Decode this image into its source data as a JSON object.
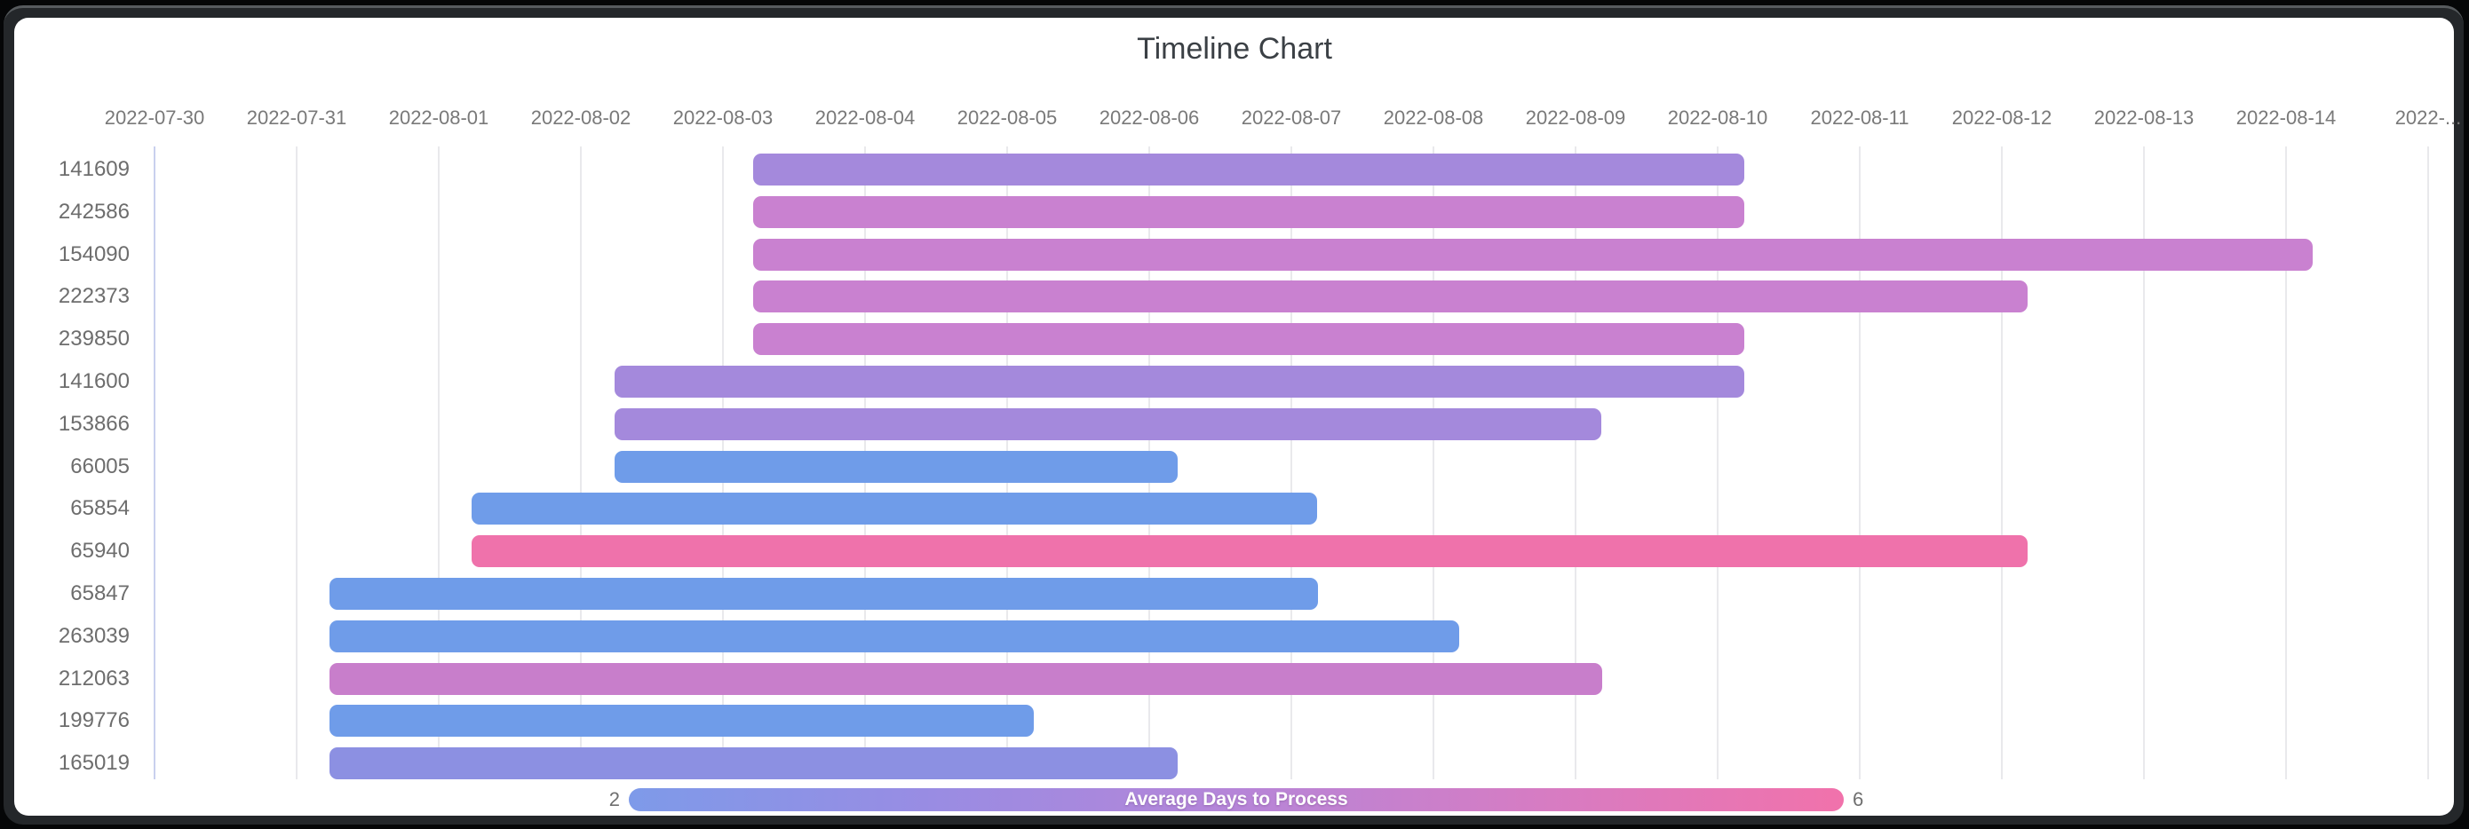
{
  "window": {
    "background_color": "#050607",
    "frame_color": "#24272a",
    "frame_highlight_color": "#575b5e",
    "card_color": "#ffffff"
  },
  "chart_data": {
    "type": "bar",
    "variant": "horizontal-timeline",
    "title": "Timeline Chart",
    "grid": true,
    "legend_position": "bottom",
    "x_axis": {
      "start_date": "2022-07-30",
      "tick_interval_days": 1,
      "labels": [
        "2022-07-30",
        "2022-07-31",
        "2022-08-01",
        "2022-08-02",
        "2022-08-03",
        "2022-08-04",
        "2022-08-05",
        "2022-08-06",
        "2022-08-07",
        "2022-08-08",
        "2022-08-09",
        "2022-08-10",
        "2022-08-11",
        "2022-08-12",
        "2022-08-13",
        "2022-08-14",
        "2022-..."
      ]
    },
    "y_axis": {
      "labels": [
        "141609",
        "242586",
        "154090",
        "222373",
        "239850",
        "141600",
        "153866",
        "66005",
        "65854",
        "65940",
        "65847",
        "263039",
        "212063",
        "199776",
        "165019"
      ]
    },
    "rows": [
      {
        "id": "141609",
        "start_day": 4.21,
        "end_day": 11.19,
        "start_date": "2022-08-03",
        "end_date": "2022-08-10",
        "duration_days": 7,
        "avg_days_to_process": 3.5,
        "color": "#a489dc"
      },
      {
        "id": "242586",
        "start_day": 4.21,
        "end_day": 11.19,
        "start_date": "2022-08-03",
        "end_date": "2022-08-10",
        "duration_days": 7,
        "avg_days_to_process": 4.7,
        "color": "#c981d0"
      },
      {
        "id": "154090",
        "start_day": 4.21,
        "end_day": 15.19,
        "start_date": "2022-08-03",
        "end_date": "2022-08-14",
        "duration_days": 11,
        "avg_days_to_process": 4.7,
        "color": "#c981d0"
      },
      {
        "id": "222373",
        "start_day": 4.21,
        "end_day": 13.18,
        "start_date": "2022-08-03",
        "end_date": "2022-08-12",
        "duration_days": 9,
        "avg_days_to_process": 4.7,
        "color": "#c981d0"
      },
      {
        "id": "239850",
        "start_day": 4.21,
        "end_day": 11.19,
        "start_date": "2022-08-03",
        "end_date": "2022-08-10",
        "duration_days": 7,
        "avg_days_to_process": 4.7,
        "color": "#c981d0"
      },
      {
        "id": "141600",
        "start_day": 3.24,
        "end_day": 11.19,
        "start_date": "2022-08-02",
        "end_date": "2022-08-10",
        "duration_days": 8,
        "avg_days_to_process": 3.5,
        "color": "#a489dc"
      },
      {
        "id": "153866",
        "start_day": 3.24,
        "end_day": 10.18,
        "start_date": "2022-08-02",
        "end_date": "2022-08-09",
        "duration_days": 7,
        "avg_days_to_process": 3.5,
        "color": "#a489dc"
      },
      {
        "id": "66005",
        "start_day": 3.24,
        "end_day": 7.2,
        "start_date": "2022-08-02",
        "end_date": "2022-08-06",
        "duration_days": 4,
        "avg_days_to_process": 2,
        "color": "#6f9ce9"
      },
      {
        "id": "65854",
        "start_day": 2.23,
        "end_day": 8.18,
        "start_date": "2022-08-01",
        "end_date": "2022-08-07",
        "duration_days": 6,
        "avg_days_to_process": 2,
        "color": "#6f9ce9"
      },
      {
        "id": "65940",
        "start_day": 2.23,
        "end_day": 13.18,
        "start_date": "2022-08-01",
        "end_date": "2022-08-12",
        "duration_days": 11,
        "avg_days_to_process": 6,
        "color": "#ef72ab"
      },
      {
        "id": "65847",
        "start_day": 1.23,
        "end_day": 8.19,
        "start_date": "2022-07-31",
        "end_date": "2022-08-07",
        "duration_days": 7,
        "avg_days_to_process": 2,
        "color": "#6f9ce9"
      },
      {
        "id": "263039",
        "start_day": 1.23,
        "end_day": 9.18,
        "start_date": "2022-07-31",
        "end_date": "2022-08-08",
        "duration_days": 8,
        "avg_days_to_process": 2,
        "color": "#6f9ce9"
      },
      {
        "id": "212063",
        "start_day": 1.23,
        "end_day": 10.19,
        "start_date": "2022-07-31",
        "end_date": "2022-08-09",
        "duration_days": 9,
        "avg_days_to_process": 4.8,
        "color": "#c87ecb"
      },
      {
        "id": "199776",
        "start_day": 1.23,
        "end_day": 6.19,
        "start_date": "2022-07-31",
        "end_date": "2022-08-05",
        "duration_days": 5,
        "avg_days_to_process": 2,
        "color": "#6f9ce9"
      },
      {
        "id": "165019",
        "start_day": 1.23,
        "end_day": 7.2,
        "start_date": "2022-07-31",
        "end_date": "2022-08-06",
        "duration_days": 6,
        "avg_days_to_process": 2.6,
        "color": "#8c90e2"
      }
    ],
    "legend": {
      "label": "Average Days to Process",
      "min": "2",
      "max": "6",
      "gradient": [
        "#7e9ae9",
        "#b685d8",
        "#f172ab"
      ],
      "first_gridline_color": "#c9d0ee",
      "gridline_color": "#e9e9ec"
    }
  }
}
